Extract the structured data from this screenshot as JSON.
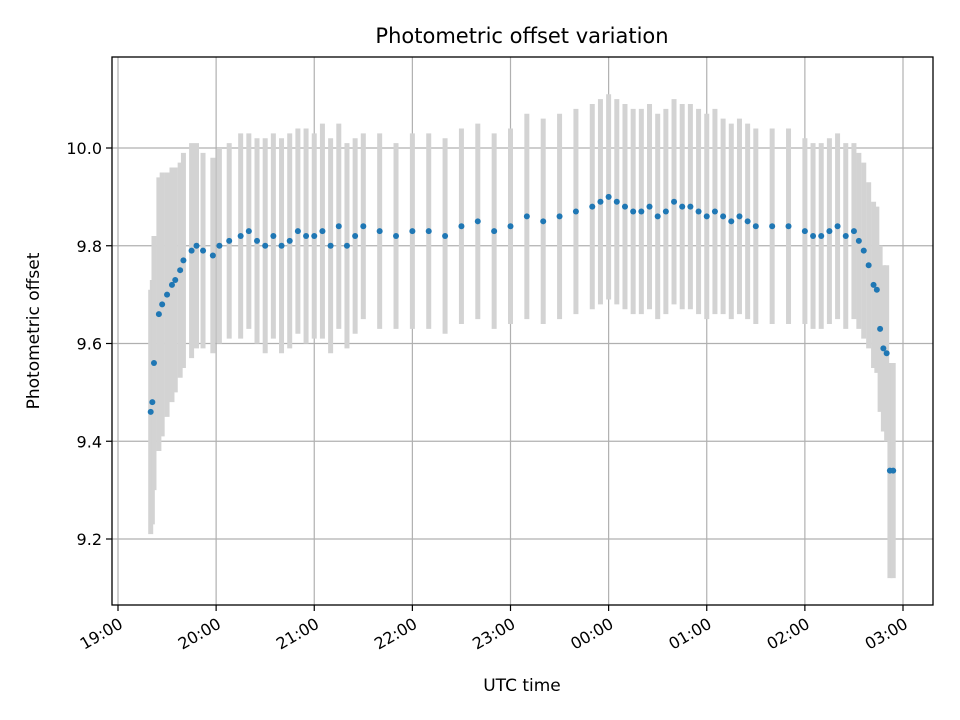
{
  "chart_data": {
    "type": "scatter",
    "title": "Photometric offset variation",
    "xlabel": "UTC time",
    "ylabel": "Photometric offset",
    "xlim": [
      "19:00",
      "03:00"
    ],
    "ylim": [
      9.07,
      10.18
    ],
    "grid": true,
    "legend": "none",
    "x_ticks": [
      "19:00",
      "20:00",
      "21:00",
      "22:00",
      "23:00",
      "00:00",
      "01:00",
      "02:00",
      "03:00"
    ],
    "y_ticks": [
      "9.2",
      "9.4",
      "9.6",
      "9.8",
      "10.0"
    ],
    "colors": {
      "points": "#1f77b4",
      "errorbars": "#d3d3d3",
      "grid": "#b0b0b0"
    },
    "series": [
      {
        "x": [
          "19:20",
          "19:21",
          "19:22",
          "19:25",
          "19:27",
          "19:30",
          "19:33",
          "19:35",
          "19:38",
          "19:40",
          "19:45",
          "19:48",
          "19:52",
          "19:58",
          "20:02",
          "20:08",
          "20:15",
          "20:20",
          "20:25",
          "20:30",
          "20:35",
          "20:40",
          "20:45",
          "20:50",
          "20:55",
          "21:00",
          "21:05",
          "21:10",
          "21:15",
          "21:20",
          "21:25",
          "21:30",
          "21:40",
          "21:50",
          "22:00",
          "22:10",
          "22:20",
          "22:30",
          "22:40",
          "22:50",
          "23:00",
          "23:10",
          "23:20",
          "23:30",
          "23:40",
          "23:50",
          "23:55",
          "00:00",
          "00:05",
          "00:10",
          "00:15",
          "00:20",
          "00:25",
          "00:30",
          "00:35",
          "00:40",
          "00:45",
          "00:50",
          "00:55",
          "01:00",
          "01:05",
          "01:10",
          "01:15",
          "01:20",
          "01:25",
          "01:30",
          "01:40",
          "01:50",
          "02:00",
          "02:05",
          "02:10",
          "02:15",
          "02:20",
          "02:25",
          "02:30",
          "02:33",
          "02:36",
          "02:39",
          "02:42",
          "02:44",
          "02:46",
          "02:48",
          "02:50",
          "02:52",
          "02:54"
        ],
        "y": [
          9.46,
          9.48,
          9.56,
          9.66,
          9.68,
          9.7,
          9.72,
          9.73,
          9.75,
          9.77,
          9.79,
          9.8,
          9.79,
          9.78,
          9.8,
          9.81,
          9.82,
          9.83,
          9.81,
          9.8,
          9.82,
          9.8,
          9.81,
          9.83,
          9.82,
          9.82,
          9.83,
          9.8,
          9.84,
          9.8,
          9.82,
          9.84,
          9.83,
          9.82,
          9.83,
          9.83,
          9.82,
          9.84,
          9.85,
          9.83,
          9.84,
          9.86,
          9.85,
          9.86,
          9.87,
          9.88,
          9.89,
          9.9,
          9.89,
          9.88,
          9.87,
          9.87,
          9.88,
          9.86,
          9.87,
          9.89,
          9.88,
          9.88,
          9.87,
          9.86,
          9.87,
          9.86,
          9.85,
          9.86,
          9.85,
          9.84,
          9.84,
          9.84,
          9.83,
          9.82,
          9.82,
          9.83,
          9.84,
          9.82,
          9.83,
          9.81,
          9.79,
          9.76,
          9.72,
          9.71,
          9.63,
          9.59,
          9.58,
          9.34,
          9.34
        ],
        "err": [
          0.25,
          0.25,
          0.26,
          0.28,
          0.27,
          0.25,
          0.24,
          0.23,
          0.22,
          0.22,
          0.22,
          0.21,
          0.2,
          0.2,
          0.2,
          0.2,
          0.21,
          0.2,
          0.21,
          0.22,
          0.21,
          0.22,
          0.22,
          0.21,
          0.22,
          0.21,
          0.22,
          0.22,
          0.21,
          0.21,
          0.2,
          0.19,
          0.2,
          0.19,
          0.2,
          0.2,
          0.2,
          0.2,
          0.2,
          0.2,
          0.2,
          0.21,
          0.21,
          0.21,
          0.21,
          0.21,
          0.21,
          0.21,
          0.21,
          0.21,
          0.21,
          0.21,
          0.21,
          0.21,
          0.21,
          0.21,
          0.21,
          0.21,
          0.21,
          0.21,
          0.21,
          0.2,
          0.2,
          0.2,
          0.2,
          0.2,
          0.2,
          0.2,
          0.19,
          0.19,
          0.19,
          0.19,
          0.19,
          0.19,
          0.18,
          0.18,
          0.18,
          0.17,
          0.17,
          0.17,
          0.17,
          0.17,
          0.18,
          0.22,
          0.22
        ]
      }
    ]
  }
}
